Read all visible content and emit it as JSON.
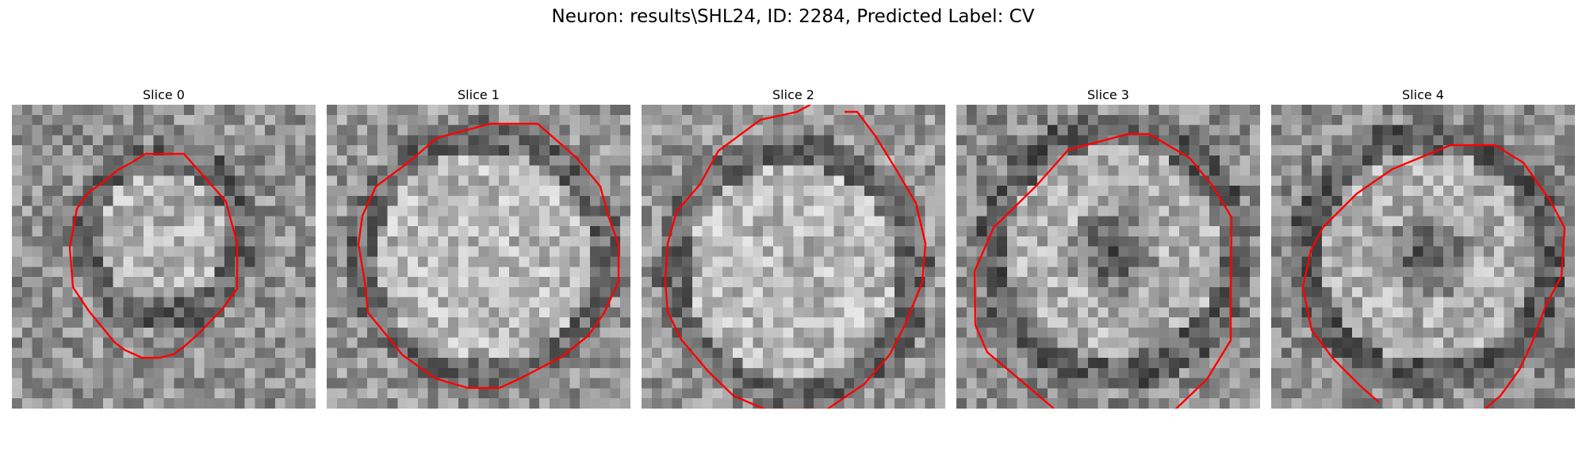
{
  "figure": {
    "title": "Neuron: results\\SHL24, ID: 2284, Predicted Label: CV"
  },
  "panels": [
    {
      "title": "Slice 0"
    },
    {
      "title": "Slice 1"
    },
    {
      "title": "Slice 2"
    },
    {
      "title": "Slice 3"
    },
    {
      "title": "Slice 4"
    }
  ],
  "style": {
    "contour_color": "#ff0000",
    "colormap": "gray"
  }
}
